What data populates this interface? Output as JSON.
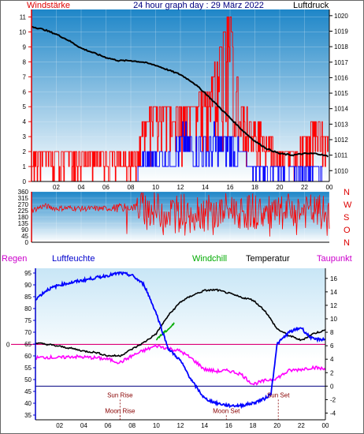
{
  "chart_data": [
    {
      "panel": "wind_pressure",
      "type": "line",
      "title": "24 hour graph day : 29 März 2022",
      "left_label": "Windstärke",
      "right_label": "Luftdruck",
      "xticks": [
        "02",
        "04",
        "06",
        "08",
        "10",
        "12",
        "14",
        "16",
        "18",
        "20",
        "22",
        "00"
      ],
      "left_ticks": [
        0,
        1,
        2,
        3,
        4,
        5,
        6,
        7,
        8,
        9,
        10,
        11
      ],
      "right_ticks": [
        1010,
        1011,
        1012,
        1013,
        1014,
        1015,
        1016,
        1017,
        1018,
        1019,
        1020
      ],
      "ylim_left": [
        0,
        11.5
      ],
      "ylim_right": [
        1009.3,
        1020.4
      ],
      "xlim_hours": [
        0,
        24
      ],
      "series": [
        {
          "kind": "pressure",
          "color": "#000000",
          "x": [
            0,
            1,
            2,
            3,
            4,
            5,
            6,
            7,
            8,
            9,
            10,
            11,
            12,
            13,
            14,
            15,
            16,
            17,
            18,
            19,
            20,
            21,
            22,
            23,
            24
          ],
          "values": [
            1019.3,
            1019.1,
            1018.8,
            1018.4,
            1017.9,
            1017.6,
            1017.3,
            1017.1,
            1017.1,
            1017.0,
            1016.8,
            1016.5,
            1016.2,
            1015.7,
            1015.0,
            1014.2,
            1013.4,
            1012.6,
            1011.9,
            1011.4,
            1011.1,
            1011.0,
            1011.1,
            1011.1,
            1010.9
          ]
        },
        {
          "kind": "gust",
          "color": "#ff0000",
          "x": [
            0,
            1,
            2,
            3,
            4,
            5,
            6,
            7,
            8,
            8.5,
            9,
            10,
            11,
            12,
            13,
            14,
            15,
            15.5,
            16,
            16.5,
            17,
            18,
            19,
            20,
            21,
            22,
            23,
            24
          ],
          "values": [
            2,
            2,
            2,
            2,
            2,
            2,
            2,
            2,
            2,
            2,
            4,
            5,
            5,
            5,
            5,
            6,
            8,
            10,
            11,
            7,
            5,
            4,
            3,
            2,
            2,
            3,
            4,
            3
          ]
        },
        {
          "kind": "mean_wind",
          "color": "#0000ff",
          "x": [
            0,
            8,
            8.5,
            9,
            10,
            11,
            12,
            13,
            14,
            15,
            16,
            17,
            18,
            19,
            20,
            21,
            22,
            23,
            24
          ],
          "values": [
            0,
            0,
            0.5,
            2,
            2,
            2,
            3,
            3,
            3,
            3,
            3,
            2,
            1,
            1,
            1,
            1,
            1,
            1,
            0
          ]
        }
      ]
    },
    {
      "panel": "wind_direction",
      "type": "line",
      "left_ticks": [
        0,
        45,
        90,
        135,
        180,
        225,
        270,
        315,
        360
      ],
      "right_labels": [
        "N",
        "W",
        "S",
        "O",
        "N"
      ],
      "ylim": [
        0,
        360
      ],
      "series": [
        {
          "kind": "direction",
          "color": "#ff0000",
          "x": [
            0,
            1,
            2,
            3,
            4,
            5,
            6,
            7,
            8,
            9,
            10,
            11,
            12,
            13,
            14,
            15,
            16,
            17,
            18,
            19,
            20,
            21,
            22,
            23,
            24
          ],
          "values": [
            225,
            260,
            240,
            245,
            240,
            240,
            240,
            245,
            250,
            250,
            230,
            215,
            225,
            240,
            215,
            200,
            240,
            220,
            225,
            200,
            200,
            230,
            220,
            215,
            200
          ]
        }
      ]
    },
    {
      "panel": "climate",
      "type": "line",
      "labels": {
        "rain": "Regen",
        "humidity": "Luftfeuchte",
        "windchill": "Windchill",
        "temperature": "Temperatur",
        "dewpoint": "Taupunkt"
      },
      "xticks": [
        "02",
        "04",
        "06",
        "08",
        "10",
        "12",
        "14",
        "16",
        "18",
        "20",
        "22",
        "00"
      ],
      "left_ticks": [
        35,
        40,
        45,
        50,
        55,
        60,
        65,
        70,
        75,
        80,
        85,
        90,
        95
      ],
      "right_ticks": [
        -4,
        -2,
        0,
        2,
        4,
        6,
        8,
        10,
        12,
        14,
        16
      ],
      "ylim_left": [
        33,
        97
      ],
      "ylim_right": [
        -5,
        17.5
      ],
      "rain_zero_label": "0",
      "events": [
        {
          "label": "Sun Rise",
          "x": 7.0
        },
        {
          "label": "Moon Rise",
          "x": 7.0
        },
        {
          "label": "Sun Set",
          "x": 20.1
        },
        {
          "label": "Moon Set",
          "x": 15.8
        }
      ],
      "series": [
        {
          "kind": "humidity",
          "color": "#0000ff",
          "axis": "left",
          "x": [
            0,
            1,
            2,
            3,
            4,
            5,
            6,
            7,
            8,
            9,
            10,
            11,
            12,
            13,
            14,
            15,
            16,
            17,
            18,
            19,
            19.5,
            20,
            21,
            22,
            22.5,
            23,
            24
          ],
          "values": [
            84,
            88,
            90,
            91,
            92,
            93,
            94,
            95,
            94,
            90,
            78,
            63,
            58,
            49,
            42,
            40,
            39,
            39,
            40,
            42,
            44,
            65,
            70,
            72,
            69,
            67,
            67
          ]
        },
        {
          "kind": "temperature",
          "color": "#000000",
          "axis": "right",
          "x": [
            0,
            1,
            2,
            3,
            4,
            5,
            6,
            7,
            8,
            9,
            10,
            11,
            12,
            13,
            14,
            15,
            16,
            17,
            18,
            19,
            20,
            21,
            22,
            23,
            24
          ],
          "values": [
            6.4,
            6.2,
            5.9,
            5.6,
            5.2,
            5.0,
            4.5,
            4.5,
            5.5,
            6.5,
            7.8,
            10.5,
            12.5,
            13.5,
            14.2,
            14.3,
            13.8,
            13.2,
            12.8,
            11.2,
            8.5,
            7.5,
            6.8,
            7.8,
            8.3
          ]
        },
        {
          "kind": "windchill",
          "color": "#00aa00",
          "axis": "right",
          "x": [
            10.0,
            10.3,
            10.6,
            10.9,
            11.2,
            11.5
          ],
          "values": [
            7.0,
            7.4,
            7.9,
            8.3,
            8.8,
            9.3
          ]
        },
        {
          "kind": "dewpoint",
          "color": "#ff00ff",
          "axis": "right",
          "x": [
            0,
            1,
            2,
            3,
            4,
            5,
            6,
            7,
            8,
            9,
            10,
            11,
            12,
            13,
            14,
            15,
            16,
            17,
            18,
            19,
            20,
            21,
            22,
            23,
            24
          ],
          "values": [
            4.2,
            4.3,
            4.2,
            4.4,
            4.3,
            4.2,
            4.0,
            3.5,
            4.5,
            5.3,
            6.0,
            5.6,
            5.2,
            4.0,
            2.5,
            2.2,
            2.3,
            1.8,
            0.3,
            0.8,
            1.2,
            2.3,
            2.5,
            2.8,
            2.5
          ]
        }
      ]
    }
  ]
}
